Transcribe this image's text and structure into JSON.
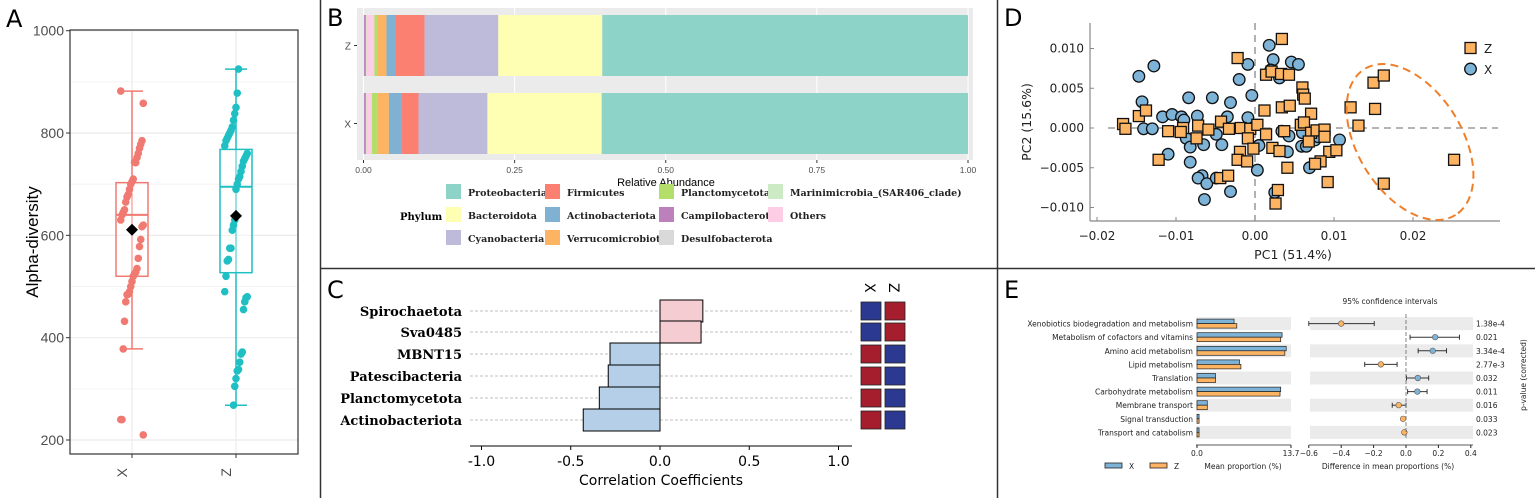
{
  "panel_labels": {
    "a": "A",
    "b": "B",
    "c": "C",
    "d": "D",
    "e": "E"
  },
  "chart_data": [
    {
      "id": "A",
      "type": "box",
      "ylabel": "Alpha-diversity",
      "ylim": [
        200,
        1000
      ],
      "yticks": [
        200,
        400,
        600,
        800,
        1000
      ],
      "groups": [
        {
          "name": "X",
          "color": "#F07A71",
          "q1": 520,
          "median": 640,
          "q3": 703,
          "whisker_low": 378,
          "whisker_high": 882,
          "mean": 611,
          "points": [
            882,
            858,
            785,
            778,
            770,
            760,
            752,
            742,
            743,
            710,
            705,
            700,
            690,
            680,
            675,
            665,
            650,
            645,
            640,
            630,
            620,
            617,
            592,
            578,
            555,
            535,
            528,
            525,
            520,
            510,
            500,
            490,
            485,
            484,
            470,
            432,
            378,
            240,
            240,
            210
          ]
        },
        {
          "name": "Z",
          "color": "#1FBFC3",
          "q1": 527,
          "median": 695,
          "q3": 768,
          "whisker_low": 268,
          "whisker_high": 925,
          "mean": 638,
          "points": [
            925,
            878,
            850,
            838,
            825,
            812,
            805,
            800,
            795,
            790,
            785,
            775,
            760,
            755,
            750,
            745,
            735,
            725,
            715,
            710,
            700,
            690,
            630,
            620,
            610,
            575,
            575,
            553,
            550,
            520,
            490,
            480,
            478,
            470,
            455,
            372,
            368,
            352,
            338,
            335,
            320,
            305,
            268
          ]
        }
      ]
    },
    {
      "id": "B",
      "type": "stacked-bar-horizontal",
      "xlabel": "Relative Abundance",
      "xlim": [
        0,
        1
      ],
      "xticks": [
        "0.00",
        "0.25",
        "0.50",
        "0.75",
        "1.00"
      ],
      "categories": [
        "Z",
        "X"
      ],
      "legend_title": "Phylum",
      "series": [
        {
          "name": "Desulfobacterota",
          "color": "#D9D9D9",
          "values": [
            0.001,
            0.001
          ]
        },
        {
          "name": "Campilobacterota",
          "color": "#BC80BD",
          "values": [
            0.003,
            0.003
          ]
        },
        {
          "name": "Marinimicrobia_(SAR406_clade)",
          "color": "#CCEBC5",
          "values": [
            0.001,
            0.001
          ]
        },
        {
          "name": "Others",
          "color": "#FCCDE5",
          "values": [
            0.013,
            0.009
          ]
        },
        {
          "name": "Planctomycetota",
          "color": "#B3DE69",
          "values": [
            0.006,
            0.01
          ]
        },
        {
          "name": "Verrucomicrobiota",
          "color": "#FDB462",
          "values": [
            0.014,
            0.018
          ]
        },
        {
          "name": "Actinobacteriota",
          "color": "#80B1D3",
          "values": [
            0.015,
            0.021
          ]
        },
        {
          "name": "Firmicutes",
          "color": "#FB8072",
          "values": [
            0.048,
            0.028
          ]
        },
        {
          "name": "Cyanobacteria",
          "color": "#BEBADA",
          "values": [
            0.122,
            0.114
          ]
        },
        {
          "name": "Bacteroidota",
          "color": "#FFFFB3",
          "values": [
            0.172,
            0.189
          ]
        },
        {
          "name": "Proteobacteria",
          "color": "#8DD3C7",
          "values": [
            0.605,
            0.606
          ]
        }
      ],
      "legend_order": [
        "Proteobacteria",
        "Bacteroidota",
        "Cyanobacteria",
        "Firmicutes",
        "Actinobacteriota",
        "Verrucomicrobiota",
        "Planctomycetota",
        "Campilobacterota",
        "Desulfobacterota",
        "Marinimicrobia_(SAR406_clade)",
        "Others"
      ]
    },
    {
      "id": "C",
      "type": "bar-horizontal",
      "xlabel": "Correlation Coefficients",
      "xlim": [
        -1.1,
        1.1
      ],
      "xticks": [
        -1.0,
        -0.5,
        0.0,
        0.5,
        1.0
      ],
      "xtick_labels": [
        "-1.0",
        "-0.5",
        "0.0",
        "0.5",
        "1.0"
      ],
      "categories": [
        "Spirochaetota",
        "Sva0485",
        "MBNT15",
        "Patescibacteria",
        "Planctomycetota",
        "Actinobacteriota"
      ],
      "values": [
        0.24,
        0.23,
        -0.28,
        -0.29,
        -0.34,
        -0.43
      ],
      "positive_color": "#F4CCD2",
      "negative_color": "#B5CFE8",
      "heat_columns": [
        "X",
        "Z"
      ],
      "heat_colors": {
        "high": "#A51E2D",
        "low": "#2B3990"
      },
      "heat_values": [
        [
          "low",
          "high"
        ],
        [
          "low",
          "high"
        ],
        [
          "high",
          "low"
        ],
        [
          "high",
          "low"
        ],
        [
          "high",
          "low"
        ],
        [
          "high",
          "low"
        ]
      ]
    },
    {
      "id": "D",
      "type": "scatter",
      "xlabel": "PC1 (51.4%)",
      "ylabel": "PC2 (15.6%)",
      "xlim": [
        -0.021,
        0.029
      ],
      "ylim": [
        -0.0118,
        0.0132
      ],
      "xticks": [
        -0.02,
        -0.01,
        0.0,
        0.01,
        0.02
      ],
      "xtick_labels": [
        "−0.02",
        "−0.01",
        "0.00",
        "0.01",
        "0.02"
      ],
      "yticks": [
        0.01,
        0.005,
        0.0,
        -0.005,
        -0.01
      ],
      "ytick_labels": [
        "0.010",
        "0.005",
        "0.000",
        "−0.005",
        "−0.010"
      ],
      "legend_placement": "top-right",
      "series": [
        {
          "name": "Z",
          "marker": "square",
          "color": "#FDB462",
          "points": [
            [
              0.0034,
              0.0112
            ],
            [
              -0.0022,
              0.0088
            ],
            [
              0.0014,
              0.0067
            ],
            [
              0.0021,
              0.0071
            ],
            [
              0.0033,
              0.0068
            ],
            [
              0.0043,
              0.0067
            ],
            [
              0.006,
              0.0051
            ],
            [
              0.0061,
              0.0042
            ],
            [
              0.0063,
              0.0037
            ],
            [
              0.0012,
              0.0022
            ],
            [
              0.0034,
              0.0026
            ],
            [
              0.0044,
              0.0028
            ],
            [
              0.0071,
              0.0018
            ],
            [
              -0.0167,
              0.0005
            ],
            [
              -0.0164,
              -0.0001
            ],
            [
              -0.0147,
              0.0015
            ],
            [
              -0.0138,
              0.0022
            ],
            [
              -0.011,
              -0.0004
            ],
            [
              -0.0122,
              -0.004
            ],
            [
              -0.0091,
              0.0
            ],
            [
              -0.0094,
              -0.0005
            ],
            [
              -0.0072,
              0.0003
            ],
            [
              -0.0074,
              -0.0013
            ],
            [
              -0.0059,
              -0.0002
            ],
            [
              -0.0043,
              0.0008
            ],
            [
              -0.0033,
              -0.0001
            ],
            [
              -0.0018,
              0.0
            ],
            [
              -0.0006,
              -0.0001
            ],
            [
              0.0003,
              0.0004
            ],
            [
              -0.0009,
              -0.0013
            ],
            [
              0.0014,
              -0.0008
            ],
            [
              -0.0002,
              -0.0026
            ],
            [
              -0.0019,
              -0.003
            ],
            [
              -0.0022,
              -0.004
            ],
            [
              -0.001,
              -0.0042
            ],
            [
              -0.0044,
              -0.0063
            ],
            [
              -0.0034,
              -0.006
            ],
            [
              0.0022,
              -0.0025
            ],
            [
              0.0031,
              -0.0029
            ],
            [
              0.0037,
              -0.0004
            ],
            [
              0.0041,
              -0.005
            ],
            [
              0.0029,
              -0.0078
            ],
            [
              0.0026,
              -0.0095
            ],
            [
              0.0058,
              0.0004
            ],
            [
              0.0062,
              0.0007
            ],
            [
              0.0071,
              -0.0006
            ],
            [
              0.0068,
              -0.0017
            ],
            [
              0.0078,
              -0.0003
            ],
            [
              0.0088,
              -0.0002
            ],
            [
              0.0088,
              -0.0011
            ],
            [
              0.0094,
              -0.003
            ],
            [
              0.0103,
              -0.0028
            ],
            [
              0.0083,
              -0.0042
            ],
            [
              0.0076,
              -0.0045
            ],
            [
              0.0092,
              -0.0068
            ],
            [
              0.0121,
              0.0026
            ],
            [
              0.0131,
              0.0003
            ],
            [
              0.015,
              0.0057
            ],
            [
              0.0163,
              0.0066
            ],
            [
              0.0152,
              0.0024
            ],
            [
              0.0252,
              -0.004
            ],
            [
              0.0163,
              -0.007
            ]
          ]
        },
        {
          "name": "X",
          "marker": "circle",
          "color": "#7EB3D8",
          "points": [
            [
              0.0018,
              0.0104
            ],
            [
              0.0023,
              0.0086
            ],
            [
              -0.0009,
              0.008
            ],
            [
              0.0046,
              0.0083
            ],
            [
              0.0055,
              0.008
            ],
            [
              0.002,
              0.0073
            ],
            [
              0.0031,
              0.0063
            ],
            [
              -0.002,
              0.0061
            ],
            [
              -0.0128,
              0.0078
            ],
            [
              -0.0147,
              0.0065
            ],
            [
              -0.0143,
              0.0033
            ],
            [
              -0.0084,
              0.0038
            ],
            [
              -0.0054,
              0.0038
            ],
            [
              -0.0031,
              0.0032
            ],
            [
              -0.0004,
              0.0041
            ],
            [
              -0.0117,
              0.0014
            ],
            [
              -0.0105,
              0.0017
            ],
            [
              -0.0093,
              0.0014
            ],
            [
              -0.009,
              0.001
            ],
            [
              -0.0073,
              0.0015
            ],
            [
              -0.0035,
              0.0014
            ],
            [
              -0.0009,
              0.0013
            ],
            [
              -0.0141,
              -0.0001
            ],
            [
              -0.013,
              -0.0001
            ],
            [
              -0.0087,
              -0.0013
            ],
            [
              -0.0082,
              -0.0024
            ],
            [
              -0.0065,
              -0.0021
            ],
            [
              -0.0049,
              -0.0008
            ],
            [
              -0.0042,
              -0.0021
            ],
            [
              -0.011,
              -0.0033
            ],
            [
              -0.0082,
              -0.0043
            ],
            [
              -0.0067,
              -0.006
            ],
            [
              -0.0072,
              -0.0063
            ],
            [
              -0.0061,
              -0.007
            ],
            [
              -0.0049,
              -0.0063
            ],
            [
              -0.0031,
              -0.008
            ],
            [
              -0.0064,
              -0.009
            ],
            [
              0.0003,
              -0.0053
            ],
            [
              0.0005,
              -0.0022
            ],
            [
              0.0025,
              -0.0081
            ],
            [
              0.0034,
              -0.0004
            ],
            [
              0.0043,
              -0.001
            ],
            [
              0.0041,
              -0.003
            ],
            [
              0.0059,
              -0.0023
            ],
            [
              0.006,
              -0.0006
            ],
            [
              0.0065,
              -0.0023
            ],
            [
              0.0069,
              -0.005
            ],
            [
              0.0076,
              -0.0015
            ],
            [
              0.0107,
              -0.0015
            ],
            [
              0.008,
              -0.0011
            ]
          ]
        }
      ]
    },
    {
      "id": "E",
      "type": "extended-error-bar",
      "title": "95% confidence intervals",
      "left_xlabel": "Mean proportion (%)",
      "left_xlim": [
        0,
        13.7
      ],
      "left_xtick_labels": [
        "0.0",
        "13.7"
      ],
      "right_xlabel": "Difference in mean proportions (%)",
      "right_xlim": [
        -0.6,
        0.4
      ],
      "right_xticks": [
        -0.6,
        -0.4,
        -0.2,
        0.0,
        0.2,
        0.4
      ],
      "right_xtick_labels": [
        "−0.6",
        "−0.4",
        "−0.2",
        "0.0",
        "0.2",
        "0.4"
      ],
      "pvalue_label": "p-value (corrected)",
      "legend": [
        {
          "name": "X",
          "color": "#7EB3D8"
        },
        {
          "name": "Z",
          "color": "#FDB462"
        }
      ],
      "rows": [
        {
          "name": "Xenobiotics biodegradation and metabolism",
          "x": 5.4,
          "z": 5.8,
          "diff": -0.4,
          "ci": [
            -0.6,
            -0.196
          ],
          "favors": "Z",
          "p": "1.38e-4"
        },
        {
          "name": "Metabolism of cofactors and vitamins",
          "x": 12.4,
          "z": 12.2,
          "diff": 0.18,
          "ci": [
            0.025,
            0.33
          ],
          "favors": "X",
          "p": "0.021"
        },
        {
          "name": "Amino acid metabolism",
          "x": 13.0,
          "z": 12.8,
          "diff": 0.165,
          "ci": [
            0.075,
            0.25
          ],
          "favors": "X",
          "p": "3.34e-4"
        },
        {
          "name": "Lipid metabolism",
          "x": 6.2,
          "z": 6.4,
          "diff": -0.155,
          "ci": [
            -0.255,
            -0.055
          ],
          "favors": "Z",
          "p": "2.77e-3"
        },
        {
          "name": "Translation",
          "x": 2.7,
          "z": 2.7,
          "diff": 0.073,
          "ci": [
            0.003,
            0.14
          ],
          "favors": "X",
          "p": "0.032"
        },
        {
          "name": "Carbohydrate metabolism",
          "x": 12.2,
          "z": 12.1,
          "diff": 0.07,
          "ci": [
            0.01,
            0.13
          ],
          "favors": "X",
          "p": "0.011"
        },
        {
          "name": "Membrane transport",
          "x": 1.5,
          "z": 1.5,
          "diff": -0.045,
          "ci": [
            -0.085,
            0.0
          ],
          "favors": "Z",
          "p": "0.016"
        },
        {
          "name": "Signal transduction",
          "x": 0.3,
          "z": 0.3,
          "diff": -0.018,
          "ci": [
            -0.022,
            -0.014
          ],
          "favors": "Z",
          "p": "0.033"
        },
        {
          "name": "Transport and catabolism",
          "x": 0.3,
          "z": 0.3,
          "diff": -0.01,
          "ci": [
            -0.013,
            -0.007
          ],
          "favors": "Z",
          "p": "0.023"
        }
      ]
    }
  ]
}
